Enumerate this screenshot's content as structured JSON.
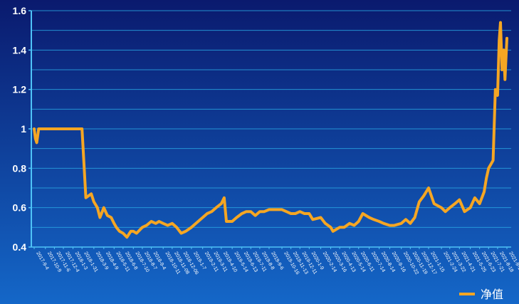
{
  "chart_data": {
    "type": "line",
    "ylim": [
      0.4,
      1.6
    ],
    "yticks": [
      0.4,
      0.6,
      0.8,
      1,
      1.2,
      1.4,
      1.6
    ],
    "ytick_labels": [
      "0.4",
      "0.6",
      "0.8",
      "1",
      "1.2",
      "1.4",
      "1.6"
    ],
    "grid": true,
    "legend_position": "bottom-right",
    "colors": {
      "background_top": "#0a1a6e",
      "background_bottom": "#1467c8",
      "line": "#f5a623",
      "grid": "#29a3e0",
      "axis": "#4fc3f7",
      "text": "#ffffff"
    },
    "xtick_labels": [
      "2017-9-4",
      "2017-10-9",
      "2017-11-6",
      "2017-12-4",
      "2018-1-3",
      "2018-1-31",
      "2018-3-9",
      "2018-4-9",
      "2018-5-11",
      "2018-6-8",
      "2018-7-10",
      "2018-8-7",
      "2018-9-4",
      "2018-10-11",
      "2018-11-08",
      "2018-12-06",
      "2019-1-7",
      "2019-2-11",
      "2019-3-11",
      "2019-4-10",
      "2019-5-14",
      "2019-6-13",
      "2019-7-11",
      "2019-8-8",
      "2019-9-6",
      "2019-10-16",
      "2019-11-13",
      "2019-12-11",
      "2020-1-9",
      "2020-2-14",
      "2020-3-16",
      "2020-4-13",
      "2020-5-14",
      "2020-6-11",
      "2020-7-14",
      "2020-8-14",
      "2020-9-16",
      "2020-10-22",
      "2020-11-19",
      "2020-12-17",
      "2021-1-15",
      "2021-2-24",
      "2021-3-22",
      "2021-4-21",
      "2021-5-25",
      "2021-6-23",
      "2021-7-21",
      "2021-8-18",
      "2021-9-16"
    ],
    "series": [
      {
        "name": "净值",
        "x": [
          "2017-9-4",
          "2017-9-8",
          "2017-9-12",
          "2017-9-18",
          "2017-10-9",
          "2017-11-6",
          "2017-12-4",
          "2018-1-3",
          "2018-1-31",
          "2018-2-12",
          "2018-3-1",
          "2018-3-9",
          "2018-3-20",
          "2018-3-28",
          "2018-4-9",
          "2018-4-20",
          "2018-5-2",
          "2018-5-11",
          "2018-5-18",
          "2018-5-28",
          "2018-6-8",
          "2018-6-20",
          "2018-7-2",
          "2018-7-10",
          "2018-7-20",
          "2018-8-7",
          "2018-8-20",
          "2018-9-4",
          "2018-9-18",
          "2018-9-28",
          "2018-10-11",
          "2018-10-25",
          "2018-11-08",
          "2018-11-22",
          "2018-12-06",
          "2018-12-20",
          "2019-1-7",
          "2019-1-21",
          "2019-2-11",
          "2019-2-25",
          "2019-3-11",
          "2019-3-25",
          "2019-4-10",
          "2019-4-19",
          "2019-4-26",
          "2019-5-14",
          "2019-5-28",
          "2019-6-13",
          "2019-6-27",
          "2019-7-11",
          "2019-7-25",
          "2019-8-8",
          "2019-8-22",
          "2019-9-6",
          "2019-9-20",
          "2019-10-16",
          "2019-10-30",
          "2019-11-13",
          "2019-11-27",
          "2019-12-11",
          "2019-12-25",
          "2020-1-9",
          "2020-1-20",
          "2020-2-14",
          "2020-2-28",
          "2020-3-16",
          "2020-3-23",
          "2020-4-13",
          "2020-4-27",
          "2020-5-14",
          "2020-5-28",
          "2020-6-11",
          "2020-6-24",
          "2020-7-14",
          "2020-7-28",
          "2020-8-14",
          "2020-8-28",
          "2020-9-16",
          "2020-9-30",
          "2020-10-22",
          "2020-11-5",
          "2020-11-19",
          "2020-12-3",
          "2020-12-17",
          "2020-12-31",
          "2021-1-15",
          "2021-2-1",
          "2021-2-24",
          "2021-3-8",
          "2021-3-22",
          "2021-4-7",
          "2021-4-21",
          "2021-5-7",
          "2021-5-25",
          "2021-6-8",
          "2021-6-23",
          "2021-7-7",
          "2021-7-14",
          "2021-7-21",
          "2021-7-28",
          "2021-8-4",
          "2021-8-11",
          "2021-8-18",
          "2021-8-23",
          "2021-8-27",
          "2021-9-1",
          "2021-9-6",
          "2021-9-10",
          "2021-9-16"
        ],
        "values": [
          1.0,
          0.95,
          0.93,
          1.0,
          1.0,
          1.0,
          1.0,
          1.0,
          1.0,
          0.65,
          0.67,
          0.63,
          0.6,
          0.55,
          0.6,
          0.56,
          0.55,
          0.52,
          0.5,
          0.48,
          0.47,
          0.45,
          0.48,
          0.48,
          0.47,
          0.5,
          0.51,
          0.53,
          0.52,
          0.53,
          0.52,
          0.51,
          0.52,
          0.5,
          0.47,
          0.48,
          0.5,
          0.52,
          0.55,
          0.57,
          0.58,
          0.6,
          0.62,
          0.65,
          0.53,
          0.53,
          0.55,
          0.57,
          0.58,
          0.58,
          0.56,
          0.58,
          0.58,
          0.59,
          0.59,
          0.59,
          0.58,
          0.57,
          0.57,
          0.58,
          0.57,
          0.57,
          0.54,
          0.55,
          0.52,
          0.5,
          0.48,
          0.5,
          0.5,
          0.52,
          0.51,
          0.53,
          0.57,
          0.55,
          0.54,
          0.53,
          0.52,
          0.51,
          0.51,
          0.52,
          0.54,
          0.52,
          0.55,
          0.63,
          0.66,
          0.7,
          0.62,
          0.6,
          0.58,
          0.6,
          0.62,
          0.64,
          0.58,
          0.6,
          0.65,
          0.62,
          0.68,
          0.75,
          0.8,
          0.82,
          0.84,
          1.2,
          1.17,
          1.45,
          1.54,
          1.3,
          1.4,
          1.25,
          1.46
        ]
      }
    ]
  }
}
